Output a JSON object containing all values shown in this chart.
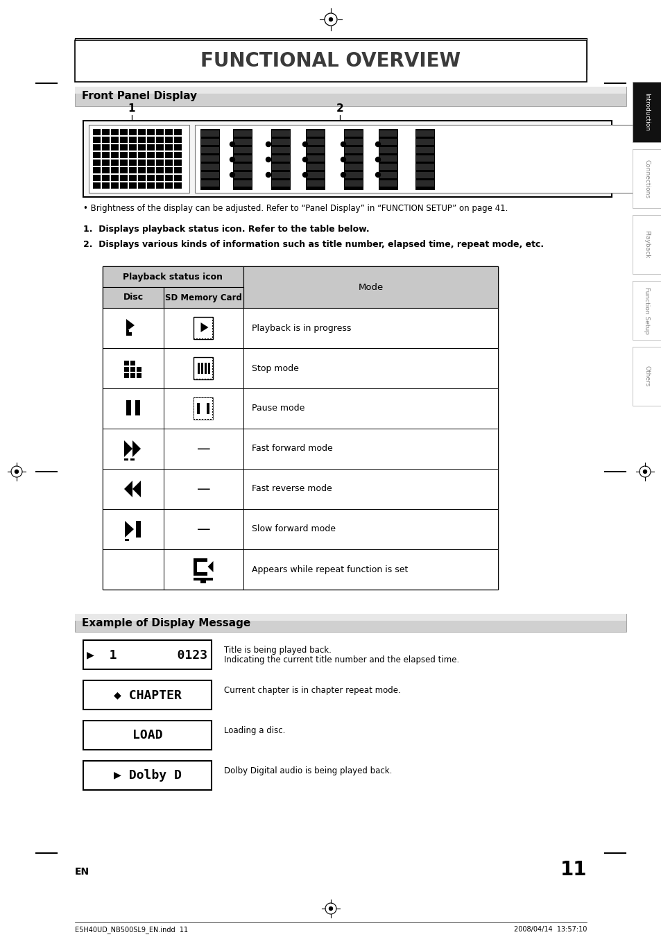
{
  "title": "FUNCTIONAL OVERVIEW",
  "section1_title": "Front Panel Display",
  "section2_title": "Example of Display Message",
  "brightness_note": "• Brightness of the display can be adjusted. Refer to “Panel Display” in “FUNCTION SETUP” on page 41.",
  "numbered_notes": [
    "Displays playback status icon. Refer to the table below.",
    "Displays various kinds of information such as title number, elapsed time, repeat mode, etc."
  ],
  "table_header_col1": "Playback status icon",
  "table_header_disc": "Disc",
  "table_header_sd": "SD Memory Card",
  "table_header_mode": "Mode",
  "table_rows": [
    {
      "mode": "Playback is in progress"
    },
    {
      "mode": "Stop mode"
    },
    {
      "mode": "Pause mode"
    },
    {
      "mode": "Fast forward mode"
    },
    {
      "mode": "Fast reverse mode"
    },
    {
      "mode": "Slow forward mode"
    },
    {
      "mode": "Appears while repeat function is set"
    }
  ],
  "display_examples": [
    {
      "display_text": "▶  1        0123",
      "desc1": "Title is being played back.",
      "desc2": "Indicating the current title number and the elapsed time."
    },
    {
      "display_text": "◆ CHAPTER",
      "desc1": "Current chapter is in chapter repeat mode.",
      "desc2": ""
    },
    {
      "display_text": "LOAD",
      "desc1": "Loading a disc.",
      "desc2": ""
    },
    {
      "display_text": "▶ Dolby D",
      "desc1": "Dolby Digital audio is being played back.",
      "desc2": ""
    }
  ],
  "side_tabs": [
    "Introduction",
    "Connections",
    "Playback",
    "Function Setup",
    "Others"
  ],
  "page_number": "11",
  "en_label": "EN",
  "footer_left": "E5H40UD_NB500SL9_EN.indd  11",
  "footer_right": "2008/04/14  13:57:10",
  "bg_color": "#ffffff"
}
